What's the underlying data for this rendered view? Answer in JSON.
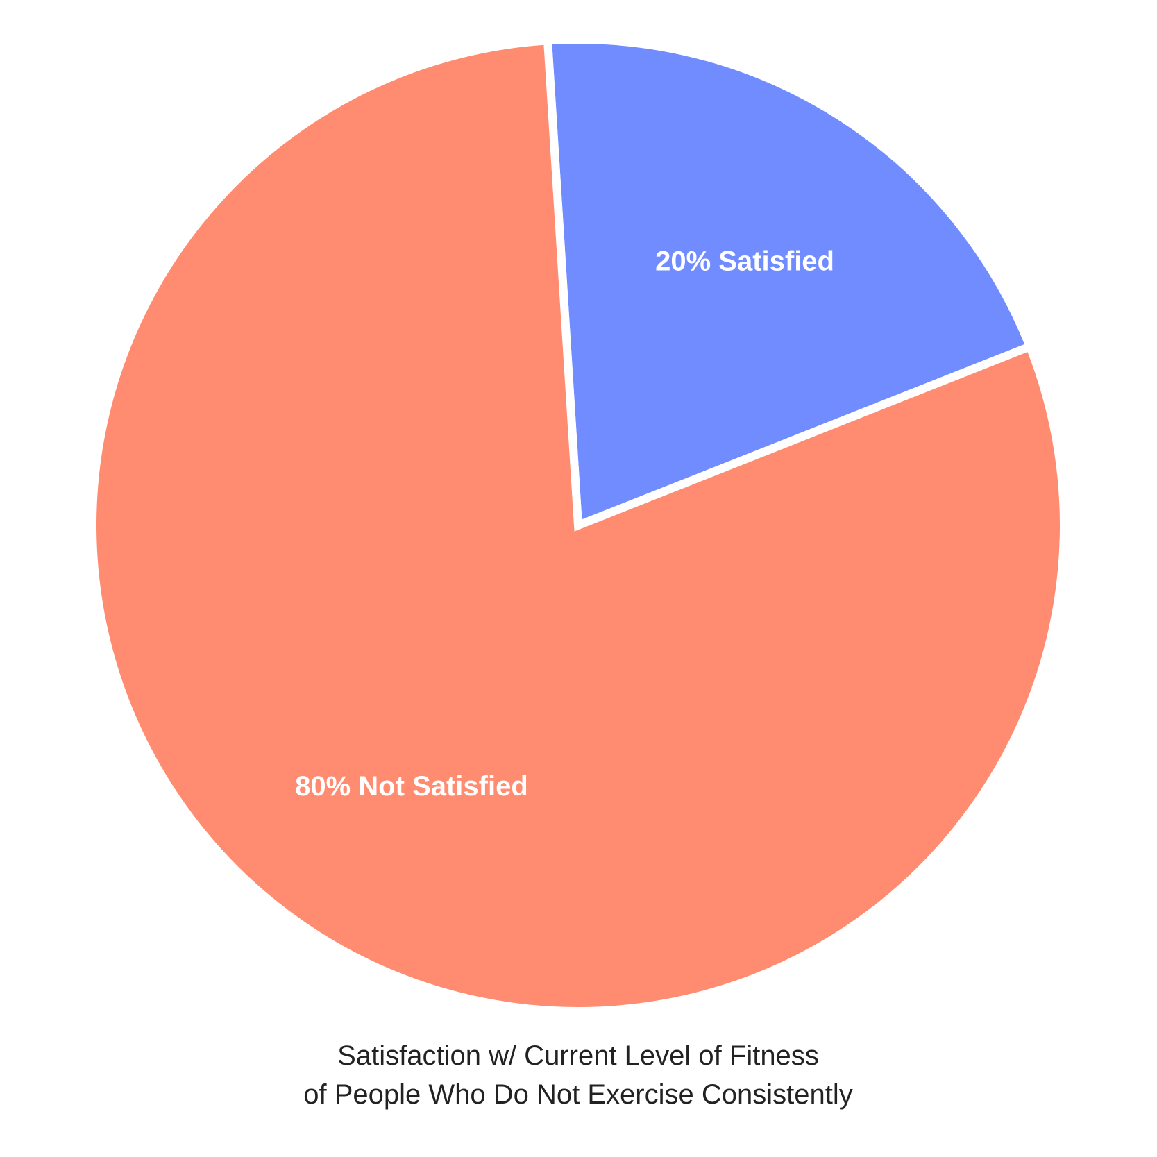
{
  "chart_data": {
    "type": "pie",
    "slices": [
      {
        "label": "20% Satisfied",
        "value": 20,
        "color": "#708CFF"
      },
      {
        "label": "80% Not Satisfied",
        "value": 80,
        "color": "#FF8C70"
      }
    ],
    "title_lines": [
      "Satisfaction w/ Current Level of Fitness",
      "of People Who Do Not Exercise Consistently"
    ],
    "separator_color": "#ffffff",
    "legend": "none"
  }
}
